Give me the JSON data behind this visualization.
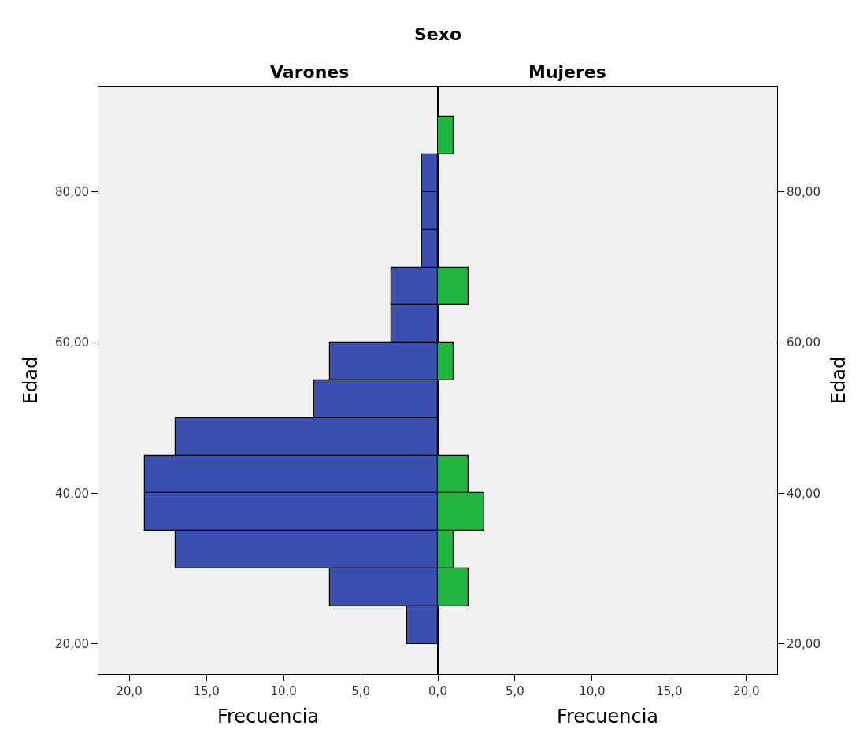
{
  "chart_data": [
    {
      "type": "histogram",
      "orientation": "horizontal",
      "title": "Varones",
      "annotations": [
        "Sexo"
      ],
      "xlabel": "Frecuencia",
      "ylabel": "Edad",
      "color": "#3a4fae",
      "bins": [
        20,
        25,
        30,
        35,
        40,
        45,
        50,
        55,
        60,
        65,
        70,
        75,
        80,
        85,
        90
      ],
      "values": [
        2,
        7,
        17,
        19,
        19,
        17,
        8,
        7,
        3,
        3,
        1,
        1,
        1,
        0
      ],
      "xlim": [
        22,
        0
      ],
      "xticks": [
        {
          "value": 20,
          "label": "20,0"
        },
        {
          "value": 15,
          "label": "15,0"
        },
        {
          "value": 10,
          "label": "10,0"
        },
        {
          "value": 5,
          "label": "5,0"
        },
        {
          "value": 0,
          "label": "0,0"
        }
      ],
      "ylim": [
        16,
        94
      ],
      "yticks": [
        {
          "value": 20,
          "label": "20,00"
        },
        {
          "value": 40,
          "label": "40,00"
        },
        {
          "value": 60,
          "label": "60,00"
        },
        {
          "value": 80,
          "label": "80,00"
        }
      ],
      "grid": false
    },
    {
      "type": "histogram",
      "orientation": "horizontal",
      "title": "Mujeres",
      "xlabel": "Frecuencia",
      "ylabel": "Edad",
      "color": "#22b540",
      "bins": [
        20,
        25,
        30,
        35,
        40,
        45,
        50,
        55,
        60,
        65,
        70,
        75,
        80,
        85,
        90
      ],
      "values": [
        0,
        2,
        1,
        3,
        2,
        0,
        0,
        1,
        0,
        2,
        0,
        0,
        0,
        1
      ],
      "xlim": [
        0,
        22
      ],
      "xticks": [
        {
          "value": 0,
          "label": null
        },
        {
          "value": 5,
          "label": "5,0"
        },
        {
          "value": 10,
          "label": "10,0"
        },
        {
          "value": 15,
          "label": "15,0"
        },
        {
          "value": 20,
          "label": "20,0"
        }
      ],
      "ylim": [
        16,
        94
      ],
      "yticks": [
        {
          "value": 20,
          "label": "20,00"
        },
        {
          "value": 40,
          "label": "40,00"
        },
        {
          "value": 60,
          "label": "60,00"
        },
        {
          "value": 80,
          "label": "80,00"
        }
      ],
      "grid": false
    }
  ]
}
